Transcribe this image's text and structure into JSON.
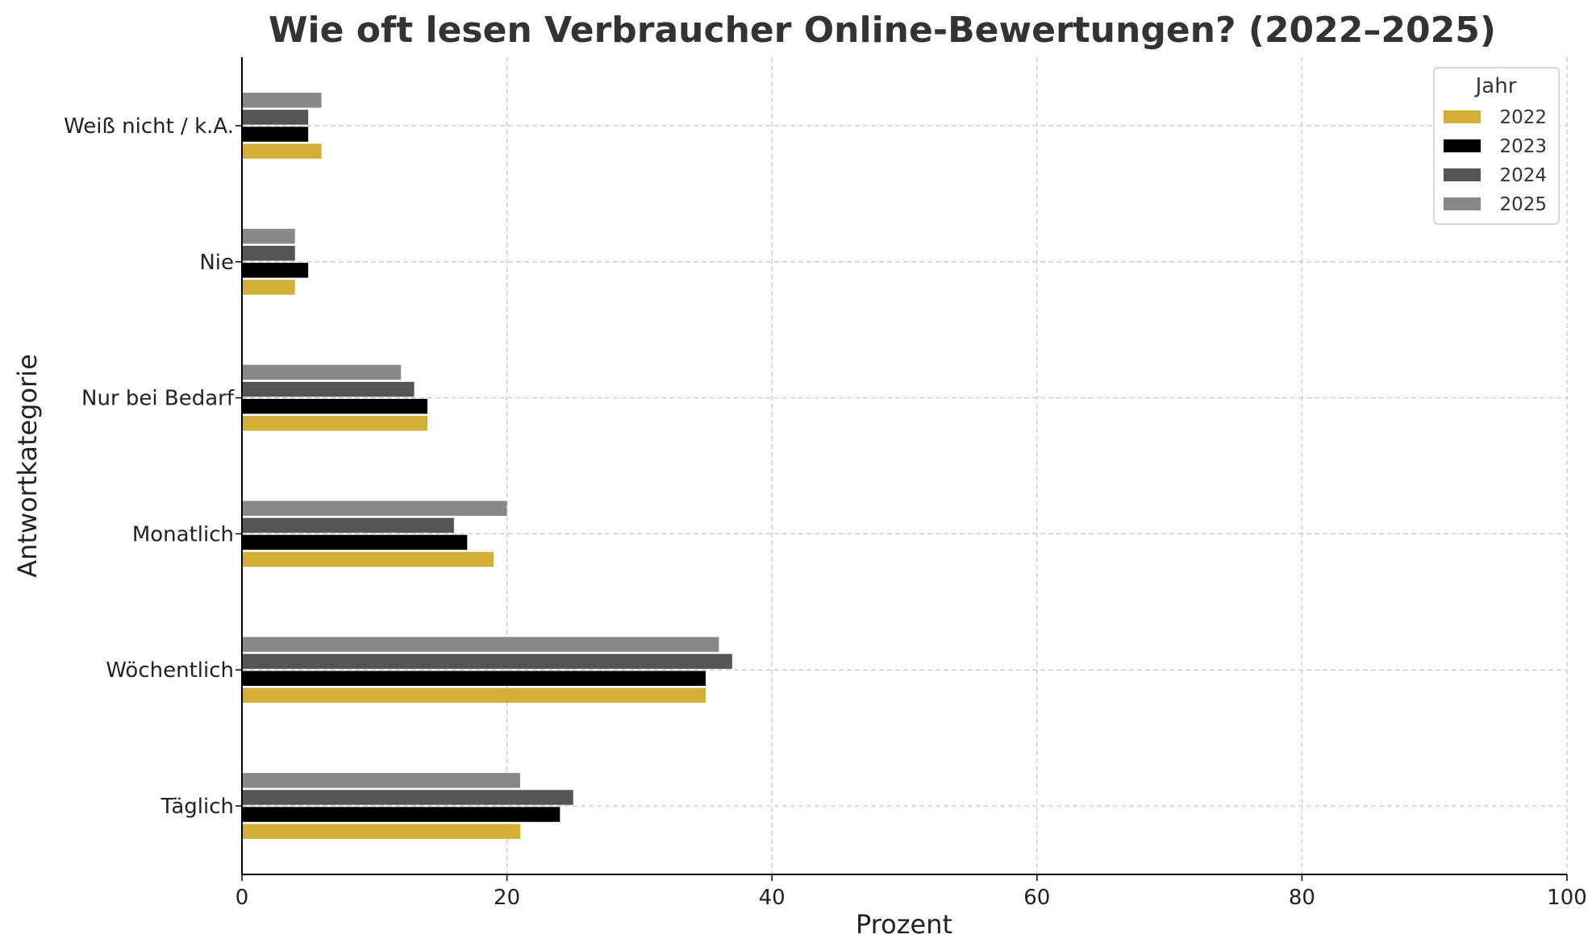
{
  "chart_data": {
    "type": "bar",
    "orientation": "horizontal",
    "title": "Wie oft lesen Verbraucher Online-Bewertungen? (2022–2025)",
    "xlabel": "Prozent",
    "ylabel": "Antwortkategorie",
    "xlim": [
      0,
      100
    ],
    "xticks": [
      0,
      20,
      40,
      60,
      80,
      100
    ],
    "grid": true,
    "legend": {
      "title": "Jahr",
      "position": "top-right"
    },
    "categories": [
      "Täglich",
      "Wöchentlich",
      "Monatlich",
      "Nur bei Bedarf",
      "Nie",
      "Weiß nicht / k.A."
    ],
    "series": [
      {
        "name": "2022",
        "color": "#D4AF37",
        "values": [
          21,
          35,
          19,
          14,
          4,
          6
        ]
      },
      {
        "name": "2023",
        "color": "#000000",
        "values": [
          24,
          35,
          17,
          14,
          5,
          5
        ]
      },
      {
        "name": "2024",
        "color": "#555555",
        "values": [
          25,
          37,
          16,
          13,
          4,
          5
        ]
      },
      {
        "name": "2025",
        "color": "#888888",
        "values": [
          21,
          36,
          20,
          12,
          4,
          6
        ]
      }
    ]
  }
}
